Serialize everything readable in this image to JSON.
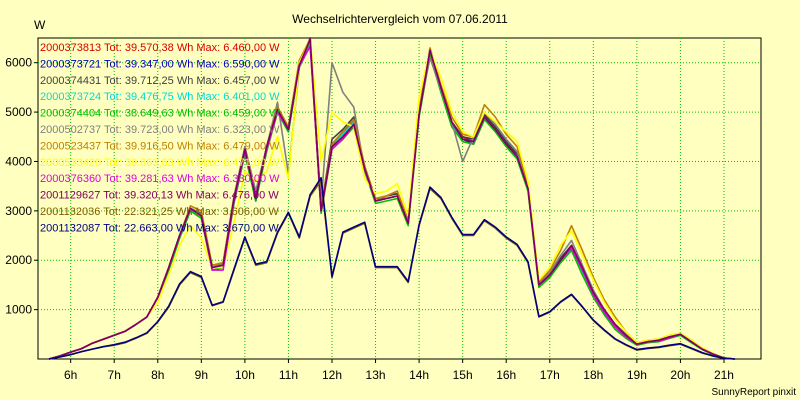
{
  "chart_data": {
    "type": "line",
    "title": "Wechselrichtervergleich vom 07.06.2011",
    "ylabel": "W",
    "xlabel": "",
    "footer": "SunnyReport pinxit",
    "xlim": [
      5.25,
      21.85
    ],
    "ylim": [
      0,
      6500
    ],
    "yticks": [
      1000,
      2000,
      3000,
      4000,
      5000,
      6000
    ],
    "xtick_values": [
      6,
      7,
      8,
      9,
      10,
      11,
      12,
      13,
      14,
      15,
      16,
      17,
      18,
      19,
      20,
      21
    ],
    "xtick_labels": [
      "6h",
      "7h",
      "8h",
      "9h",
      "10h",
      "11h",
      "12h",
      "13h",
      "14h",
      "15h",
      "16h",
      "17h",
      "18h",
      "19h",
      "20h",
      "21h"
    ],
    "grid": true,
    "legend_position": "top-left",
    "x": [
      5.5,
      5.75,
      6,
      6.25,
      6.5,
      6.75,
      7,
      7.25,
      7.5,
      7.75,
      8,
      8.25,
      8.5,
      8.75,
      9,
      9.25,
      9.5,
      9.75,
      10,
      10.25,
      10.5,
      10.75,
      11,
      11.25,
      11.5,
      11.75,
      12,
      12.25,
      12.5,
      12.75,
      13,
      13.25,
      13.5,
      13.75,
      14,
      14.25,
      14.5,
      14.75,
      15,
      15.25,
      15.5,
      15.75,
      16,
      16.25,
      16.5,
      16.75,
      17,
      17.25,
      17.5,
      17.75,
      18,
      18.25,
      18.5,
      18.75,
      19,
      19.25,
      19.5,
      19.75,
      20,
      20.25,
      20.5,
      20.75,
      21,
      21.25
    ],
    "series": [
      {
        "name": "2000373813 Tot: 39.570,38 Wh Max: 6.460,00 W",
        "color": "#d80000",
        "values": [
          0,
          60,
          140,
          210,
          320,
          400,
          480,
          560,
          700,
          850,
          1250,
          1850,
          2500,
          3050,
          2900,
          1850,
          1900,
          3250,
          4250,
          3250,
          4300,
          5050,
          4650,
          6000,
          6400,
          3000,
          4300,
          4500,
          4750,
          3800,
          3200,
          3250,
          3300,
          2800,
          5000,
          6250,
          5500,
          4800,
          4500,
          4400,
          4900,
          4700,
          4400,
          4150,
          3500,
          1500,
          1700,
          2000,
          2250,
          1800,
          1350,
          1000,
          700,
          500,
          300,
          350,
          380,
          450,
          500,
          350,
          200,
          100,
          20,
          0
        ]
      },
      {
        "name": "2000373721 Tot: 39.347,00 Wh Max: 6.590,00 W",
        "color": "#0000c0",
        "values": [
          0,
          60,
          140,
          210,
          320,
          400,
          480,
          560,
          700,
          850,
          1250,
          1800,
          2450,
          3000,
          2900,
          1850,
          1900,
          3200,
          4200,
          3200,
          4250,
          5000,
          4600,
          5950,
          6500,
          3050,
          4350,
          4600,
          4800,
          3900,
          3200,
          3300,
          3350,
          2750,
          4950,
          6200,
          5450,
          4750,
          4450,
          4350,
          4850,
          4650,
          4350,
          4100,
          3450,
          1500,
          1700,
          2000,
          2200,
          1750,
          1300,
          950,
          650,
          450,
          300,
          350,
          360,
          430,
          500,
          350,
          200,
          100,
          20,
          0
        ]
      },
      {
        "name": "2000374431 Tot: 39.712,25 Wh Max: 6.457,00 W",
        "color": "#404040",
        "values": [
          0,
          60,
          140,
          210,
          320,
          400,
          480,
          560,
          700,
          850,
          1250,
          1850,
          2500,
          3050,
          2950,
          1850,
          1950,
          3250,
          4250,
          3300,
          4300,
          5100,
          4700,
          6000,
          6450,
          3050,
          4450,
          4650,
          4900,
          3900,
          3250,
          3300,
          3350,
          2800,
          5000,
          6250,
          5500,
          4800,
          4500,
          4450,
          4950,
          4700,
          4400,
          4150,
          3500,
          1500,
          1700,
          2050,
          2300,
          1850,
          1350,
          1000,
          700,
          500,
          300,
          350,
          380,
          450,
          500,
          350,
          200,
          100,
          20,
          0
        ]
      },
      {
        "name": "2000373724 Tot: 39.476,75 Wh Max: 6.401,00 W",
        "color": "#00d8d8",
        "values": [
          0,
          60,
          140,
          210,
          320,
          400,
          480,
          560,
          700,
          850,
          1250,
          1800,
          2450,
          3000,
          2900,
          1850,
          1900,
          3200,
          4200,
          3250,
          4250,
          5050,
          4650,
          5950,
          6400,
          3000,
          4300,
          4550,
          4800,
          3850,
          3200,
          3250,
          3300,
          2750,
          4950,
          6200,
          5450,
          4750,
          4450,
          4400,
          4900,
          4650,
          4350,
          4100,
          3450,
          1500,
          1700,
          2000,
          2200,
          1750,
          1300,
          950,
          650,
          450,
          300,
          350,
          360,
          430,
          500,
          350,
          200,
          100,
          20,
          0
        ]
      },
      {
        "name": "2000374404 Tot: 38.649,63 Wh Max: 6.459,00 W",
        "color": "#00c000",
        "values": [
          0,
          60,
          140,
          210,
          320,
          400,
          480,
          560,
          700,
          850,
          1250,
          1800,
          2450,
          3000,
          2850,
          1800,
          1850,
          3150,
          4150,
          3200,
          4200,
          5000,
          4600,
          5900,
          6450,
          2950,
          4250,
          4450,
          4700,
          3800,
          3150,
          3200,
          3250,
          2700,
          4900,
          6150,
          5400,
          4700,
          4400,
          4350,
          4850,
          4600,
          4300,
          4050,
          3400,
          1450,
          1650,
          1950,
          2200,
          1700,
          1250,
          900,
          600,
          420,
          280,
          330,
          350,
          420,
          480,
          330,
          190,
          90,
          20,
          0
        ]
      },
      {
        "name": "2000502737 Tot: 39.723,00 Wh Max: 6.323,00 W",
        "color": "#808080",
        "values": [
          0,
          60,
          140,
          210,
          320,
          400,
          480,
          560,
          700,
          850,
          1250,
          1850,
          2500,
          3050,
          2950,
          1850,
          1950,
          3300,
          4300,
          3400,
          4300,
          5200,
          3750,
          5900,
          6350,
          3150,
          6000,
          5400,
          5100,
          3800,
          3200,
          3300,
          3400,
          2800,
          5000,
          6100,
          5450,
          4800,
          4000,
          4500,
          5000,
          4750,
          4450,
          4200,
          3500,
          1550,
          1750,
          2100,
          2400,
          1900,
          1400,
          1000,
          700,
          500,
          300,
          350,
          380,
          450,
          500,
          350,
          200,
          100,
          20,
          0
        ]
      },
      {
        "name": "2000523437 Tot: 39.916,50 Wh Max: 6.479,00 W",
        "color": "#c08000",
        "values": [
          0,
          60,
          140,
          210,
          320,
          400,
          480,
          560,
          700,
          850,
          1250,
          1850,
          2500,
          3100,
          3000,
          1900,
          1950,
          3250,
          4250,
          3300,
          4300,
          5100,
          4700,
          6050,
          6480,
          3050,
          4350,
          4600,
          4850,
          3900,
          3250,
          3300,
          3400,
          2800,
          5050,
          6300,
          5550,
          4900,
          4550,
          4500,
          5150,
          4900,
          4550,
          4300,
          3550,
          1550,
          1800,
          2200,
          2700,
          2200,
          1650,
          1200,
          850,
          550,
          330,
          380,
          400,
          480,
          520,
          380,
          220,
          110,
          20,
          0
        ]
      },
      {
        "name": "2000533420 Tot: 39.863,63 Wh Max: 6.471,00 W",
        "color": "#ffff00",
        "values": [
          0,
          60,
          140,
          210,
          320,
          400,
          480,
          560,
          700,
          850,
          1150,
          1700,
          2300,
          2700,
          2450,
          1850,
          1850,
          2750,
          3800,
          3600,
          3800,
          4500,
          3650,
          6000,
          6470,
          4000,
          5000,
          4800,
          4700,
          3650,
          3350,
          3400,
          3550,
          2900,
          5300,
          6250,
          5700,
          5000,
          4600,
          4500,
          5000,
          4800,
          4600,
          4400,
          3600,
          1600,
          1850,
          2300,
          2600,
          2100,
          1600,
          1150,
          800,
          550,
          330,
          380,
          400,
          480,
          520,
          380,
          220,
          110,
          20,
          0
        ]
      },
      {
        "name": "2000376360 Tot: 39.281,63 Wh Max: 6.330,00 W",
        "color": "#e000e0",
        "values": [
          0,
          60,
          140,
          210,
          320,
          400,
          480,
          560,
          700,
          850,
          1250,
          1850,
          2500,
          3050,
          2900,
          1800,
          1800,
          3200,
          4200,
          3300,
          4250,
          5000,
          4650,
          5950,
          6330,
          3000,
          4250,
          4450,
          4750,
          3850,
          3200,
          3250,
          3300,
          2750,
          4950,
          6250,
          5500,
          4800,
          4450,
          4400,
          4900,
          4650,
          4350,
          4100,
          3450,
          1500,
          1700,
          2000,
          2250,
          1800,
          1300,
          950,
          650,
          450,
          300,
          350,
          360,
          430,
          500,
          350,
          200,
          100,
          20,
          0
        ]
      },
      {
        "name": "2001129627 Tot: 39.320,13 Wh Max: 6.476,00 W",
        "color": "#800060",
        "values": [
          0,
          60,
          140,
          210,
          320,
          400,
          480,
          560,
          700,
          850,
          1250,
          1850,
          2500,
          3050,
          2900,
          1850,
          1900,
          3250,
          4250,
          3250,
          4300,
          5050,
          4650,
          5950,
          6476,
          3000,
          4300,
          4500,
          4750,
          3850,
          3200,
          3250,
          3300,
          2750,
          4950,
          6250,
          5500,
          4800,
          4450,
          4400,
          4900,
          4650,
          4350,
          4100,
          3450,
          1500,
          1700,
          2000,
          2300,
          1850,
          1350,
          1000,
          700,
          480,
          300,
          350,
          380,
          450,
          500,
          350,
          200,
          100,
          20,
          0
        ]
      },
      {
        "name": "2001132036 Tot: 22.321,25 Wh Max: 3.606,00 W",
        "color": "#806000",
        "values": [
          0,
          40,
          90,
          150,
          200,
          250,
          280,
          330,
          420,
          520,
          750,
          1050,
          1500,
          1750,
          1650,
          1080,
          1150,
          1800,
          2450,
          1900,
          1950,
          2550,
          2950,
          2450,
          3300,
          3606,
          1650,
          2550,
          2650,
          2750,
          1850,
          1850,
          1850,
          1550,
          2700,
          3450,
          3250,
          2850,
          2500,
          2500,
          2800,
          2650,
          2450,
          2300,
          1950,
          850,
          950,
          1150,
          1300,
          1050,
          780,
          580,
          400,
          280,
          180,
          210,
          230,
          270,
          300,
          210,
          120,
          60,
          15,
          0
        ]
      },
      {
        "name": "2001132087 Tot: 22.663,00 Wh Max: 3.670,00 W",
        "color": "#000080",
        "values": [
          0,
          40,
          90,
          150,
          200,
          250,
          290,
          340,
          430,
          530,
          760,
          1070,
          1520,
          1770,
          1670,
          1090,
          1160,
          1820,
          2470,
          1920,
          1970,
          2570,
          2970,
          2470,
          3330,
          3670,
          1670,
          2570,
          2670,
          2770,
          1870,
          1870,
          1870,
          1570,
          2720,
          3480,
          3270,
          2870,
          2520,
          2520,
          2820,
          2670,
          2470,
          2320,
          1970,
          860,
          960,
          1160,
          1310,
          1060,
          790,
          590,
          410,
          290,
          190,
          220,
          240,
          280,
          310,
          220,
          130,
          60,
          15,
          0
        ]
      }
    ]
  }
}
